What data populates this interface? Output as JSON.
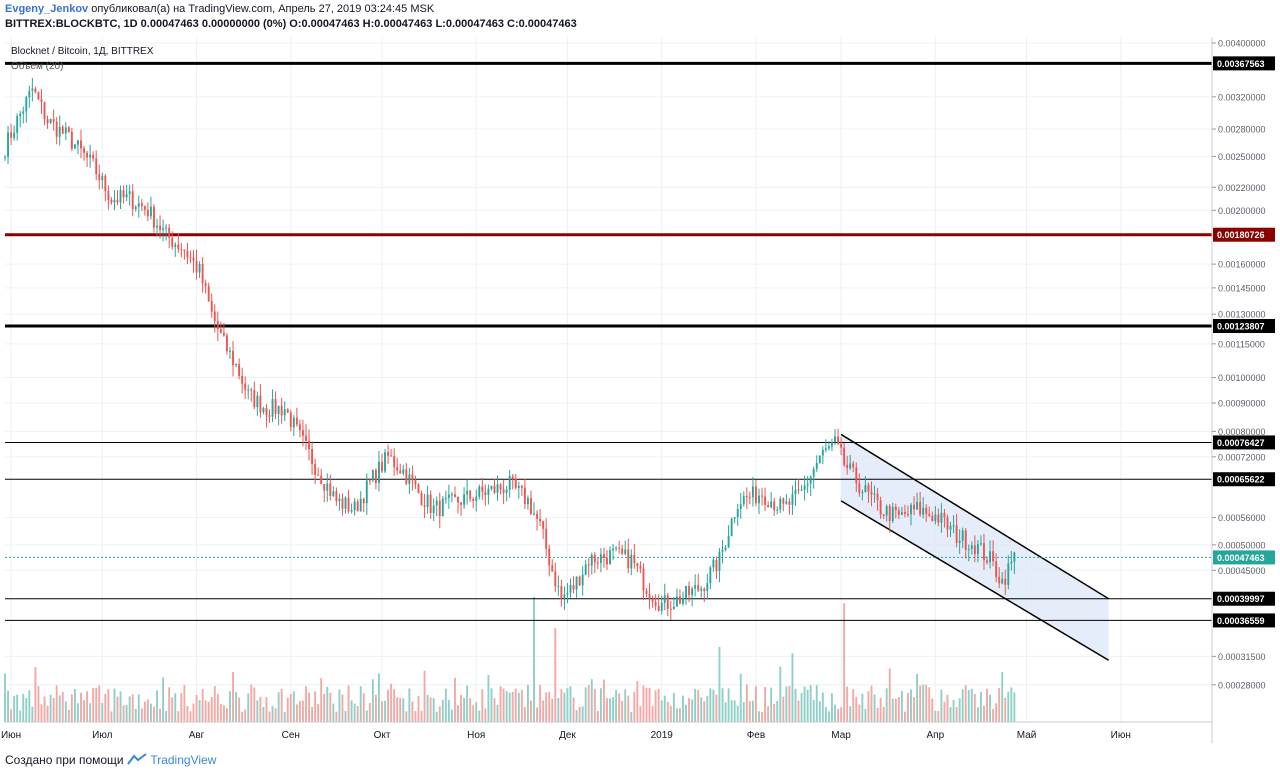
{
  "header": {
    "author": "Evgeny_Jenkov",
    "published_text": "опубликовал(а) на TradingView.com, Апрель 27, 2019 03:24:45 MSK",
    "symbol_line": "BITTREX:BLOCKBTC, 1D 0.00047463 0.00000000 (0%) O:0.00047463 H:0.00047463 L:0.00047463 C:0.00047463"
  },
  "legend": {
    "title": "Blocknet / Bitcoin, 1Д, BITTREX",
    "volume": "Объем (20)"
  },
  "footer": {
    "created_text": "Создано при помощи",
    "brand": "TradingView"
  },
  "colors": {
    "up": "#26a69a",
    "down": "#ef5350",
    "vol_up": "#8fcfc8",
    "vol_down": "#f2a8a4",
    "level_black": "#000000",
    "level_red": "#8b0000",
    "channel_fill": "#dbe7f7",
    "last_price_line": "#26a69a",
    "grid": "#eef0f3"
  },
  "chart_data": {
    "type": "candlestick",
    "title": "Blocknet / Bitcoin, 1Д, BITTREX",
    "y_axis": {
      "scale": "log",
      "range": [
        0.00024,
        0.0041
      ],
      "tick_labels": [
        "0.00400000",
        "0.00320000",
        "0.00280000",
        "0.00250000",
        "0.00220000",
        "0.00200000",
        "0.00160000",
        "0.00145000",
        "0.00130000",
        "0.00115000",
        "0.00100000",
        "0.00090000",
        "0.00080000",
        "0.00072000",
        "0.00056000",
        "0.00050000",
        "0.00045000",
        "0.00031500",
        "0.00028000"
      ],
      "tick_values": [
        0.004,
        0.0032,
        0.0028,
        0.0025,
        0.0022,
        0.002,
        0.0016,
        0.00145,
        0.0013,
        0.00115,
        0.001,
        0.0009,
        0.0008,
        0.00072,
        0.00056,
        0.0005,
        0.00045,
        0.000315,
        0.00028
      ]
    },
    "x_axis": {
      "labels": [
        "Июн",
        "Июл",
        "Авг",
        "Сен",
        "Окт",
        "Ноя",
        "Дек",
        "2019",
        "Фев",
        "Мар",
        "Апр",
        "Май",
        "Июн"
      ],
      "label_dates": [
        "2018-06-01",
        "2018-07-01",
        "2018-08-01",
        "2018-09-01",
        "2018-10-01",
        "2018-11-01",
        "2018-12-01",
        "2019-01-01",
        "2019-02-01",
        "2019-03-01",
        "2019-04-01",
        "2019-05-01",
        "2019-06-01"
      ],
      "range": [
        "2018-05-30",
        "2019-07-01"
      ]
    },
    "grid": true,
    "horizontal_levels": [
      {
        "label": "0.00367563",
        "value": 0.00367563,
        "color": "#000000",
        "weight": "thick"
      },
      {
        "label": "0.00180726",
        "value": 0.00180726,
        "color": "#8b0000",
        "weight": "thick"
      },
      {
        "label": "0.00123807",
        "value": 0.00123807,
        "color": "#000000",
        "weight": "thick"
      },
      {
        "label": "0.00076427",
        "value": 0.00076427,
        "color": "#000000",
        "weight": "thin"
      },
      {
        "label": "0.00065622",
        "value": 0.00065622,
        "color": "#000000",
        "weight": "thin"
      },
      {
        "label": "0.00039997",
        "value": 0.00039997,
        "color": "#000000",
        "weight": "thin"
      },
      {
        "label": "0.00036559",
        "value": 0.00036559,
        "color": "#000000",
        "weight": "thin"
      }
    ],
    "last_price": {
      "label": "0.00047463",
      "value": 0.00047463
    },
    "channel": {
      "upper": [
        [
          "2019-03-01",
          0.00079
        ],
        [
          "2019-05-28",
          0.0004
        ]
      ],
      "lower": [
        [
          "2019-03-01",
          0.0006
        ],
        [
          "2019-05-28",
          0.00031
        ]
      ]
    },
    "close_path": [
      [
        "2018-05-30",
        0.0026
      ],
      [
        "2018-06-03",
        0.0029
      ],
      [
        "2018-06-08",
        0.0033
      ],
      [
        "2018-06-13",
        0.0029
      ],
      [
        "2018-06-20",
        0.0027
      ],
      [
        "2018-06-28",
        0.0024
      ],
      [
        "2018-07-04",
        0.0021
      ],
      [
        "2018-07-10",
        0.0021
      ],
      [
        "2018-07-16",
        0.002
      ],
      [
        "2018-07-22",
        0.0018
      ],
      [
        "2018-07-28",
        0.0017
      ],
      [
        "2018-08-02",
        0.00155
      ],
      [
        "2018-08-06",
        0.0013
      ],
      [
        "2018-08-10",
        0.00115
      ],
      [
        "2018-08-14",
        0.00105
      ],
      [
        "2018-08-18",
        0.00093
      ],
      [
        "2018-08-24",
        0.00088
      ],
      [
        "2018-08-30",
        0.00088
      ],
      [
        "2018-09-04",
        0.00078
      ],
      [
        "2018-09-10",
        0.00068
      ],
      [
        "2018-09-16",
        0.0006
      ],
      [
        "2018-09-22",
        0.00058
      ],
      [
        "2018-09-28",
        0.00066
      ],
      [
        "2018-10-03",
        0.00072
      ],
      [
        "2018-10-08",
        0.00068
      ],
      [
        "2018-10-13",
        0.00062
      ],
      [
        "2018-10-18",
        0.00058
      ],
      [
        "2018-10-26",
        0.0006
      ],
      [
        "2018-11-03",
        0.00062
      ],
      [
        "2018-11-12",
        0.00064
      ],
      [
        "2018-11-18",
        0.0006
      ],
      [
        "2018-11-22",
        0.00054
      ],
      [
        "2018-11-26",
        0.00045
      ],
      [
        "2018-11-29",
        0.0004
      ],
      [
        "2018-12-03",
        0.00042
      ],
      [
        "2018-12-08",
        0.00047
      ],
      [
        "2018-12-16",
        0.00048
      ],
      [
        "2018-12-22",
        0.00047
      ],
      [
        "2018-12-27",
        0.00042
      ],
      [
        "2019-01-01",
        0.00039
      ],
      [
        "2019-01-07",
        0.0004
      ],
      [
        "2019-01-14",
        0.00042
      ],
      [
        "2019-01-20",
        0.00047
      ],
      [
        "2019-01-26",
        0.0006
      ],
      [
        "2019-02-03",
        0.00062
      ],
      [
        "2019-02-10",
        0.00058
      ],
      [
        "2019-02-16",
        0.00062
      ],
      [
        "2019-02-22",
        0.00072
      ],
      [
        "2019-02-27",
        0.00076
      ],
      [
        "2019-03-02",
        0.0007
      ],
      [
        "2019-03-08",
        0.00063
      ],
      [
        "2019-03-14",
        0.00058
      ],
      [
        "2019-03-20",
        0.00056
      ],
      [
        "2019-03-26",
        0.00058
      ],
      [
        "2019-04-02",
        0.00056
      ],
      [
        "2019-04-08",
        0.00052
      ],
      [
        "2019-04-14",
        0.0005
      ],
      [
        "2019-04-19",
        0.00047
      ],
      [
        "2019-04-23",
        0.00043
      ],
      [
        "2019-04-27",
        0.00047463
      ]
    ],
    "volume_spikes": [
      [
        "2018-11-20",
        1.0
      ],
      [
        "2018-11-27",
        0.75
      ],
      [
        "2019-01-20",
        0.6
      ],
      [
        "2019-02-13",
        0.55
      ],
      [
        "2019-03-02",
        0.95
      ],
      [
        "2019-04-23",
        0.4
      ]
    ]
  }
}
